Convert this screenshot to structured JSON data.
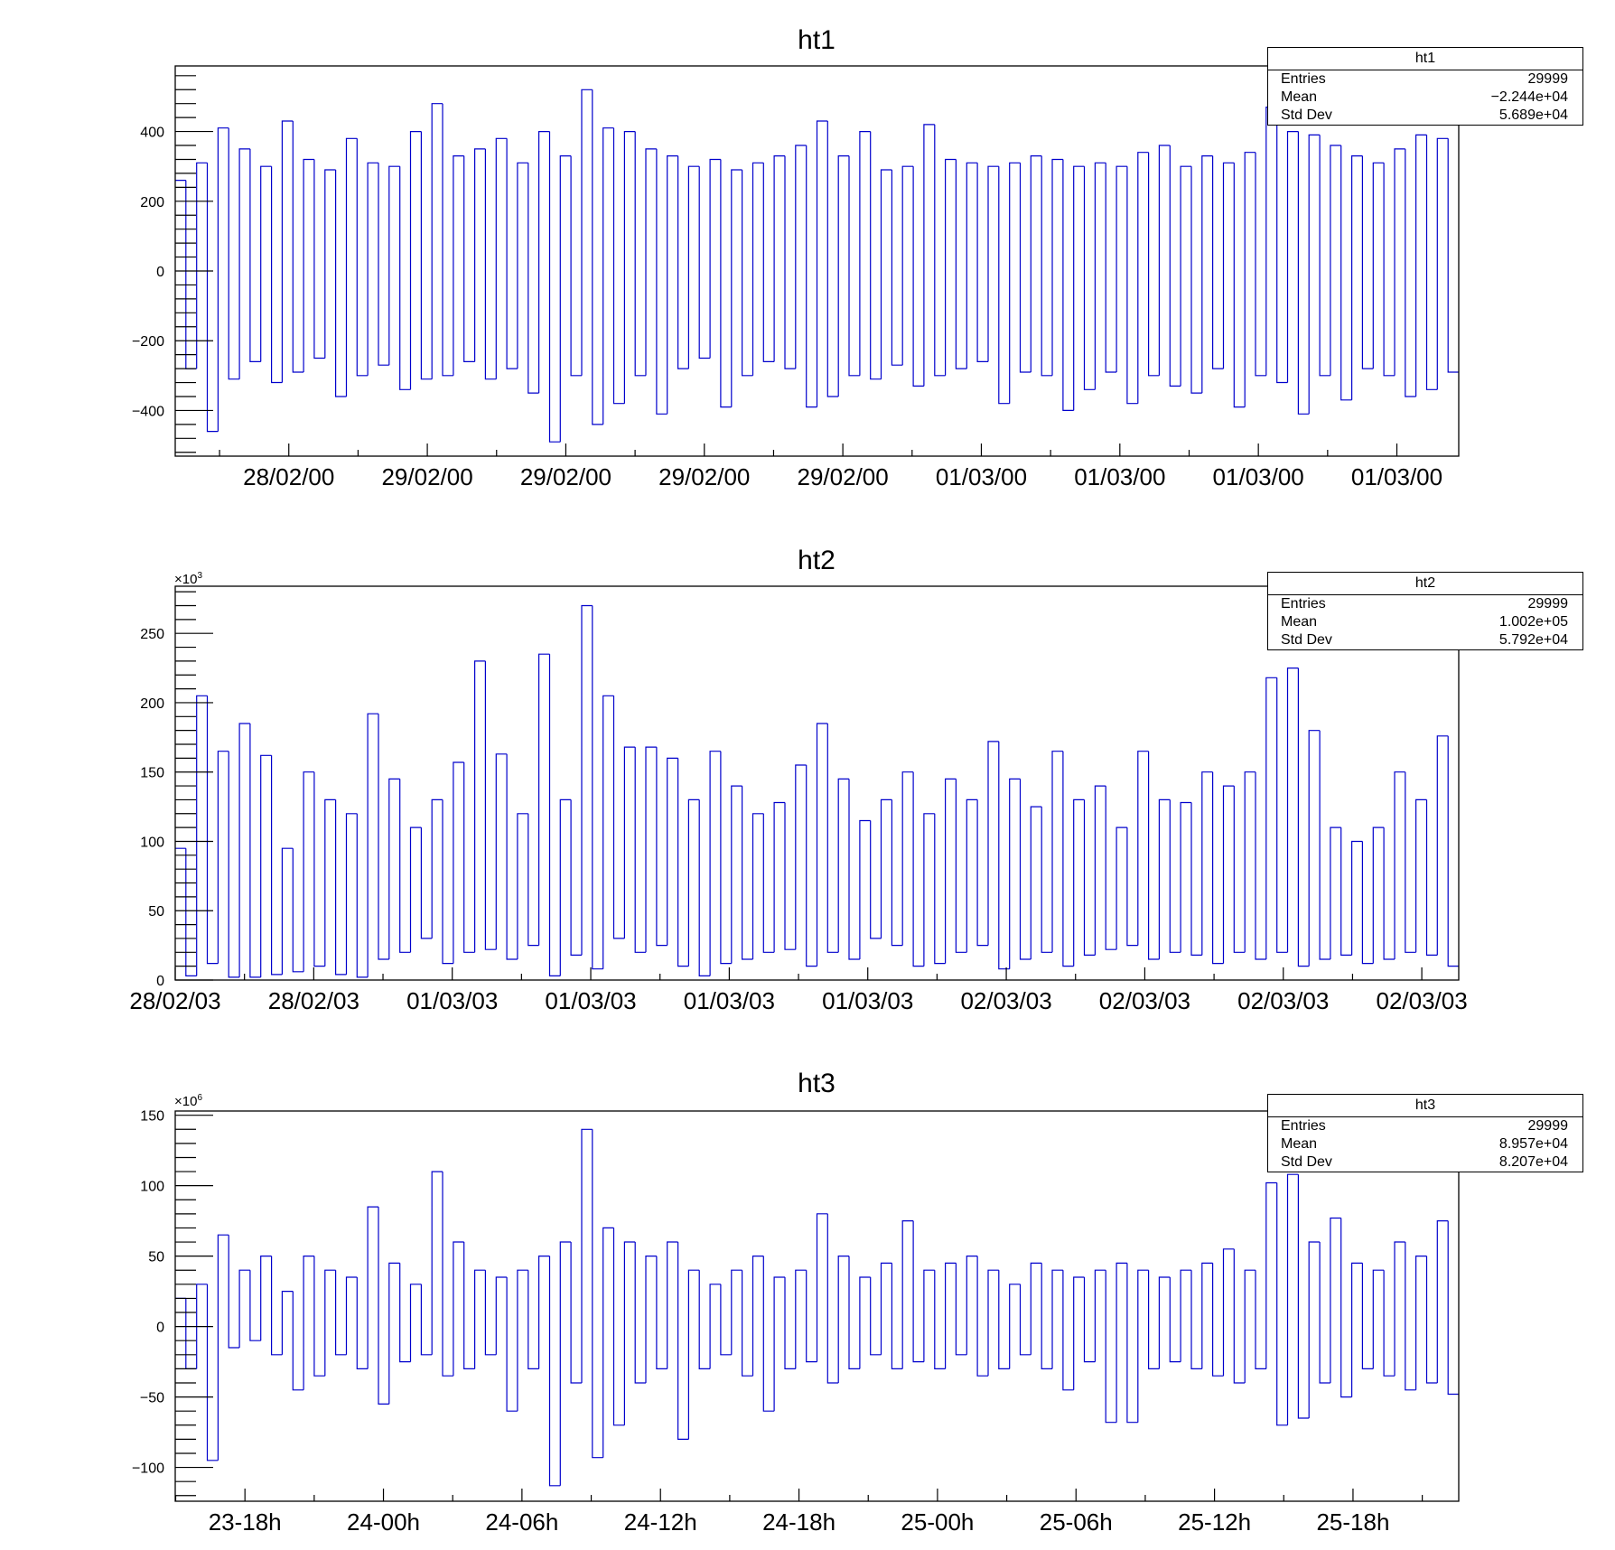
{
  "chart_data": [
    {
      "type": "histogram",
      "title": "ht1",
      "ylim": [
        -531,
        588
      ],
      "y_major_step": 200,
      "y_minor_step": 40,
      "y_ticks": [
        -400,
        -200,
        0,
        200,
        400
      ],
      "y_tick_labels": [
        "−400",
        "−200",
        "0",
        "200",
        "400"
      ],
      "y_multiplier": "",
      "x_range_hours": [
        0,
        55.6
      ],
      "x_ticks_hours": [
        4.92,
        10.92,
        16.92,
        22.92,
        28.92,
        34.92,
        40.92,
        46.92,
        52.92
      ],
      "x_tick_labels": [
        "28/02/00",
        "29/02/00",
        "29/02/00",
        "29/02/00",
        "29/02/00",
        "01/03/00",
        "01/03/00",
        "01/03/00",
        "01/03/00"
      ],
      "stats": {
        "name": "ht1",
        "entries_label": "Entries",
        "entries": "29999",
        "mean_label": "Mean",
        "mean": "−2.244e+04",
        "std_label": "Std Dev",
        "std": "5.689e+04"
      },
      "values": [
        260,
        -280,
        310,
        -460,
        410,
        -310,
        350,
        -260,
        300,
        -320,
        430,
        -290,
        320,
        -250,
        290,
        -360,
        380,
        -300,
        310,
        -270,
        300,
        -340,
        400,
        -310,
        480,
        -300,
        330,
        -260,
        350,
        -310,
        380,
        -280,
        310,
        -350,
        400,
        -490,
        330,
        -300,
        520,
        -440,
        410,
        -380,
        400,
        -300,
        350,
        -410,
        330,
        -280,
        300,
        -250,
        320,
        -390,
        290,
        -300,
        310,
        -260,
        330,
        -280,
        360,
        -390,
        430,
        -360,
        330,
        -300,
        400,
        -310,
        290,
        -270,
        300,
        -330,
        420,
        -300,
        320,
        -280,
        310,
        -260,
        300,
        -380,
        310,
        -290,
        330,
        -300,
        320,
        -400,
        300,
        -340,
        310,
        -290,
        300,
        -380,
        340,
        -300,
        360,
        -330,
        300,
        -350,
        330,
        -280,
        310,
        -390,
        340,
        -300,
        470,
        -320,
        400,
        -410,
        390,
        -300,
        360,
        -370,
        330,
        -280,
        310,
        -300,
        350,
        -360,
        390,
        -340,
        380,
        -290
      ]
    },
    {
      "type": "histogram",
      "title": "ht2",
      "ylim": [
        0,
        284
      ],
      "y_major_step": 50,
      "y_minor_step": 10,
      "y_ticks": [
        0,
        50,
        100,
        150,
        200,
        250
      ],
      "y_tick_labels": [
        "0",
        "50",
        "100",
        "150",
        "200",
        "250"
      ],
      "y_multiplier": "×10",
      "y_multiplier_exp": "3",
      "x_range_hours": [
        0,
        55.6
      ],
      "x_ticks_hours": [
        0,
        6,
        12,
        18,
        24,
        30,
        36,
        42,
        48,
        54
      ],
      "x_tick_labels": [
        "28/02/03",
        "28/02/03",
        "01/03/03",
        "01/03/03",
        "01/03/03",
        "01/03/03",
        "02/03/03",
        "02/03/03",
        "02/03/03",
        "02/03/03"
      ],
      "stats": {
        "name": "ht2",
        "entries_label": "Entries",
        "entries": "29999",
        "mean_label": "Mean",
        "mean": "1.002e+05",
        "std_label": "Std Dev",
        "std": "5.792e+04"
      },
      "values": [
        95,
        3,
        205,
        12,
        165,
        2,
        185,
        2,
        162,
        4,
        95,
        6,
        150,
        10,
        130,
        4,
        120,
        2,
        192,
        15,
        145,
        20,
        110,
        30,
        130,
        12,
        157,
        20,
        230,
        22,
        163,
        15,
        120,
        25,
        235,
        3,
        130,
        18,
        270,
        8,
        205,
        30,
        168,
        20,
        168,
        25,
        160,
        10,
        130,
        3,
        165,
        12,
        140,
        15,
        120,
        20,
        128,
        22,
        155,
        10,
        185,
        20,
        145,
        15,
        115,
        30,
        130,
        25,
        150,
        10,
        120,
        12,
        145,
        20,
        130,
        25,
        172,
        8,
        145,
        15,
        125,
        20,
        165,
        10,
        130,
        18,
        140,
        22,
        110,
        25,
        165,
        15,
        130,
        20,
        128,
        18,
        150,
        12,
        140,
        20,
        150,
        15,
        218,
        20,
        225,
        10,
        180,
        15,
        110,
        18,
        100,
        12,
        110,
        15,
        150,
        20,
        130,
        18,
        176,
        10
      ]
    },
    {
      "type": "histogram",
      "title": "ht3",
      "ylim": [
        -124,
        153
      ],
      "y_major_step": 50,
      "y_minor_step": 10,
      "y_ticks": [
        -100,
        -50,
        0,
        50,
        100,
        150
      ],
      "y_tick_labels": [
        "−100",
        "−50",
        "0",
        "50",
        "100",
        "150"
      ],
      "y_multiplier": "×10",
      "y_multiplier_exp": "6",
      "x_range_hours": [
        0,
        55.6
      ],
      "x_ticks_hours": [
        3.02,
        9.02,
        15.02,
        21.02,
        27.02,
        33.02,
        39.02,
        45.02,
        51.02
      ],
      "x_tick_labels": [
        "23-18h",
        "24-00h",
        "24-06h",
        "24-12h",
        "24-18h",
        "25-00h",
        "25-06h",
        "25-12h",
        "25-18h"
      ],
      "stats": {
        "name": "ht3",
        "entries_label": "Entries",
        "entries": "29999",
        "mean_label": "Mean",
        "mean": "8.957e+04",
        "std_label": "Std Dev",
        "std": "8.207e+04"
      },
      "values": [
        20,
        -30,
        30,
        -95,
        65,
        -15,
        40,
        -10,
        50,
        -20,
        25,
        -45,
        50,
        -35,
        40,
        -20,
        35,
        -30,
        85,
        -55,
        45,
        -25,
        30,
        -20,
        110,
        -35,
        60,
        -30,
        40,
        -20,
        35,
        -60,
        40,
        -30,
        50,
        -113,
        60,
        -40,
        140,
        -93,
        70,
        -70,
        60,
        -40,
        50,
        -30,
        60,
        -80,
        40,
        -30,
        30,
        -20,
        40,
        -35,
        50,
        -60,
        35,
        -30,
        40,
        -25,
        80,
        -40,
        50,
        -30,
        35,
        -20,
        45,
        -30,
        75,
        -25,
        40,
        -30,
        45,
        -20,
        50,
        -35,
        40,
        -30,
        30,
        -20,
        45,
        -30,
        40,
        -45,
        35,
        -25,
        40,
        -68,
        45,
        -68,
        40,
        -30,
        35,
        -25,
        40,
        -30,
        45,
        -35,
        55,
        -40,
        40,
        -30,
        102,
        -70,
        108,
        -65,
        60,
        -40,
        77,
        -50,
        45,
        -30,
        40,
        -35,
        60,
        -45,
        50,
        -40,
        75,
        -48
      ]
    }
  ],
  "colors": {
    "line": "#0000cc",
    "axis": "#000000"
  }
}
